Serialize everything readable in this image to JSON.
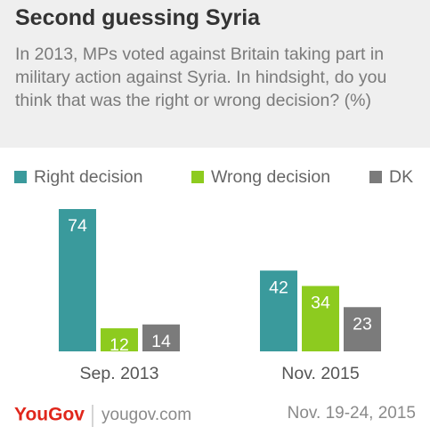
{
  "chart_data": {
    "type": "bar",
    "title": "Second guessing Syria",
    "subtitle": "In 2013, MPs voted against Britain taking part in military action against Syria. In hindsight, do you think that was the right or wrong decision? (%)",
    "categories": [
      "Sep. 2013",
      "Nov. 2015"
    ],
    "series": [
      {
        "name": "Right decision",
        "color": "#3a9a9c",
        "values": [
          74,
          42
        ]
      },
      {
        "name": "Wrong decision",
        "color": "#8dcb1f",
        "values": [
          12,
          34
        ]
      },
      {
        "name": "DK",
        "color": "#7b7b7b",
        "values": [
          14,
          23
        ]
      }
    ],
    "brand": "YouGov",
    "website": "yougov.com",
    "fieldwork": "Nov. 19-24, 2015"
  }
}
